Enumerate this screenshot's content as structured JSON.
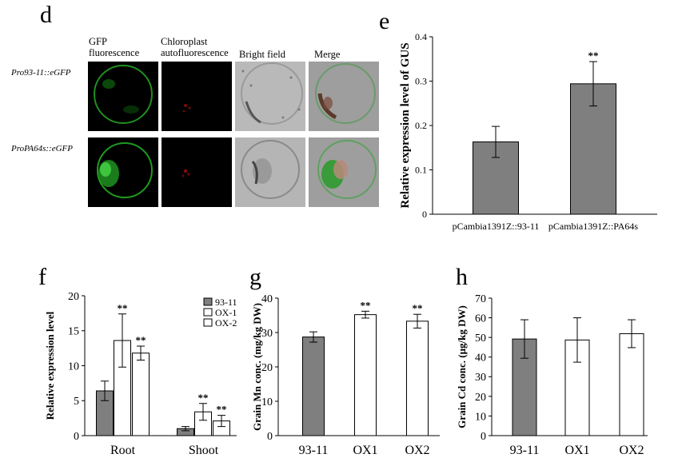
{
  "panel_d": {
    "letter": "d",
    "columns": [
      "GFP\nfluorescence",
      "Chloroplast\nautofluorescence",
      "Bright field",
      "Merge"
    ],
    "rows": [
      "Pro93-11::eGFP",
      "ProPA64s::eGFP"
    ]
  },
  "chart_data": [
    {
      "panel": "e",
      "type": "bar",
      "categories": [
        "pCambia1391Z::93-11",
        "pCambia1391Z::PA64s"
      ],
      "values": [
        0.163,
        0.294
      ],
      "errors": [
        0.035,
        0.05
      ],
      "significance": [
        "",
        "**"
      ],
      "ylabel": "Relative expression level of GUS",
      "ylim": [
        0,
        0.4
      ],
      "yticks": [
        "0",
        "0.1",
        "0.2",
        "0.3",
        "0.4"
      ],
      "colors": [
        "#7f7f7f",
        "#7f7f7f"
      ]
    },
    {
      "panel": "f",
      "type": "bar",
      "categories": [
        "Root",
        "Shoot"
      ],
      "series": [
        {
          "name": "93-11",
          "values": [
            6.4,
            1.0
          ],
          "errors": [
            1.4,
            0.3
          ],
          "significance": [
            "",
            ""
          ],
          "color": "#7f7f7f"
        },
        {
          "name": "OX-1",
          "values": [
            13.6,
            3.4
          ],
          "errors": [
            3.8,
            1.2
          ],
          "significance": [
            "**",
            "**"
          ],
          "color": "#ffffff"
        },
        {
          "name": "OX-2",
          "values": [
            11.8,
            2.1
          ],
          "errors": [
            1.0,
            0.8
          ],
          "significance": [
            "**",
            "**"
          ],
          "color": "#ffffff"
        }
      ],
      "ylabel": "Relative expression level",
      "ylim": [
        0,
        20
      ],
      "yticks": [
        "0",
        "5",
        "10",
        "15",
        "20"
      ]
    },
    {
      "panel": "g",
      "type": "bar",
      "categories": [
        "93-11",
        "OX1",
        "OX2"
      ],
      "values": [
        28.7,
        35.2,
        33.3
      ],
      "errors": [
        1.5,
        1.0,
        2.0
      ],
      "significance": [
        "",
        "**",
        "**"
      ],
      "ylabel": "Grain Mn conc. (mg/kg DW)",
      "ylim": [
        0,
        40
      ],
      "yticks": [
        "0",
        "10",
        "20",
        "30",
        "40"
      ],
      "colors": [
        "#7f7f7f",
        "#ffffff",
        "#ffffff"
      ]
    },
    {
      "panel": "h",
      "type": "bar",
      "categories": [
        "93-11",
        "OX1",
        "OX2"
      ],
      "values": [
        49.2,
        48.7,
        51.9
      ],
      "errors": [
        9.8,
        11.3,
        7.1
      ],
      "significance": [
        "",
        "",
        ""
      ],
      "ylabel": "Grain Cd conc. (μg/kg DW)",
      "ylim": [
        0,
        70
      ],
      "yticks": [
        "0",
        "10",
        "20",
        "30",
        "40",
        "50",
        "60",
        "70"
      ],
      "colors": [
        "#7f7f7f",
        "#ffffff",
        "#ffffff"
      ]
    }
  ]
}
